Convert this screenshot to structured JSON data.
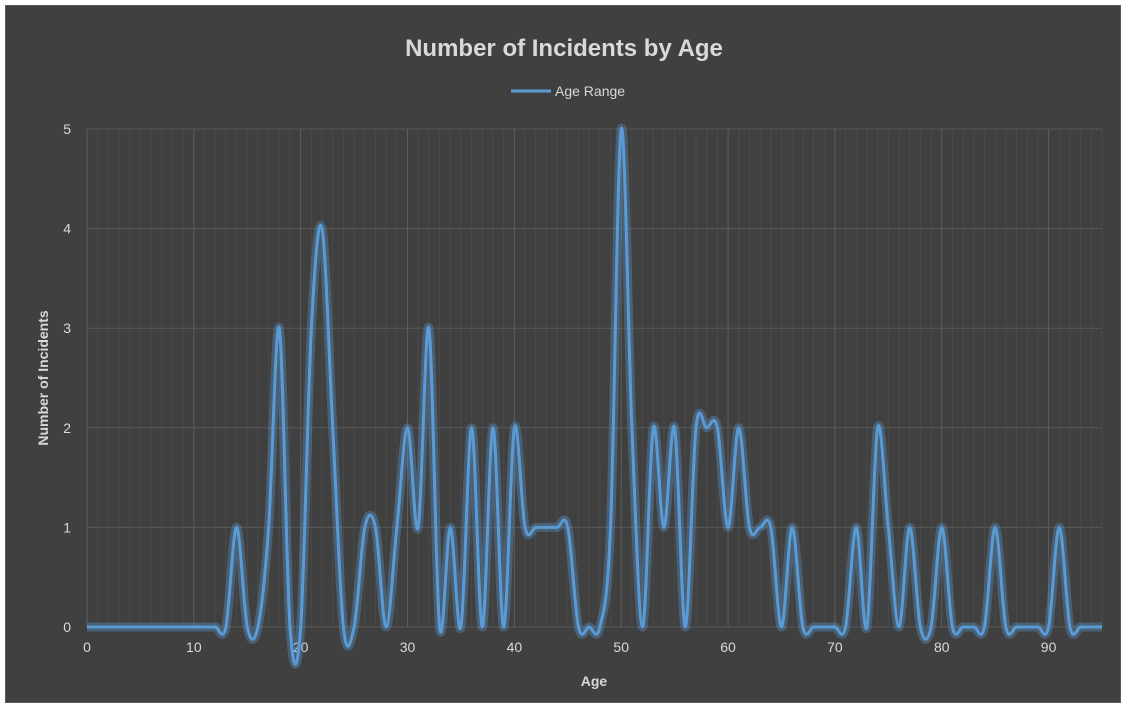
{
  "chart_data": {
    "type": "line",
    "title": "Number of Incidents by Age",
    "xlabel": "Age",
    "ylabel": "Number of Incidents",
    "xlim": [
      0,
      95
    ],
    "ylim": [
      0,
      5
    ],
    "x_ticks": [
      "0",
      "10",
      "20",
      "30",
      "40",
      "50",
      "60",
      "70",
      "80",
      "90"
    ],
    "y_ticks": [
      "0",
      "1",
      "2",
      "3",
      "4",
      "5"
    ],
    "legend_position": "top",
    "grid": true,
    "smooth": true,
    "colors": {
      "background": "#404040",
      "line": "#5b9bd5",
      "grid": "#595959",
      "text": "#d9d9d9"
    },
    "series": [
      {
        "name": "Age Range",
        "x": [
          0,
          1,
          2,
          3,
          4,
          5,
          6,
          7,
          8,
          9,
          10,
          11,
          12,
          13,
          14,
          15,
          16,
          17,
          18,
          19,
          20,
          21,
          22,
          23,
          24,
          25,
          26,
          27,
          28,
          29,
          30,
          31,
          32,
          33,
          34,
          35,
          36,
          37,
          38,
          39,
          40,
          41,
          42,
          43,
          44,
          45,
          46,
          47,
          48,
          49,
          50,
          51,
          52,
          53,
          54,
          55,
          56,
          57,
          58,
          59,
          60,
          61,
          62,
          63,
          64,
          65,
          66,
          67,
          68,
          69,
          70,
          71,
          72,
          73,
          74,
          75,
          76,
          77,
          78,
          79,
          80,
          81,
          82,
          83,
          84,
          85,
          86,
          87,
          88,
          89,
          90,
          91,
          92,
          93,
          94,
          95
        ],
        "y": [
          0,
          0,
          0,
          0,
          0,
          0,
          0,
          0,
          0,
          0,
          0,
          0,
          0,
          0,
          1,
          0,
          0,
          1,
          3,
          0,
          0,
          3,
          4,
          2,
          0,
          0,
          1,
          1,
          0,
          1,
          2,
          1,
          3,
          0,
          1,
          0,
          2,
          0,
          2,
          0,
          2,
          1,
          1,
          1,
          1,
          1,
          0,
          0,
          0,
          1,
          5,
          2,
          0,
          2,
          1,
          2,
          0,
          2,
          2,
          2,
          1,
          2,
          1,
          1,
          1,
          0,
          1,
          0,
          0,
          0,
          0,
          0,
          1,
          0,
          2,
          1,
          0,
          1,
          0,
          0,
          1,
          0,
          0,
          0,
          0,
          1,
          0,
          0,
          0,
          0,
          0,
          1,
          0,
          0,
          0,
          0
        ]
      }
    ]
  }
}
